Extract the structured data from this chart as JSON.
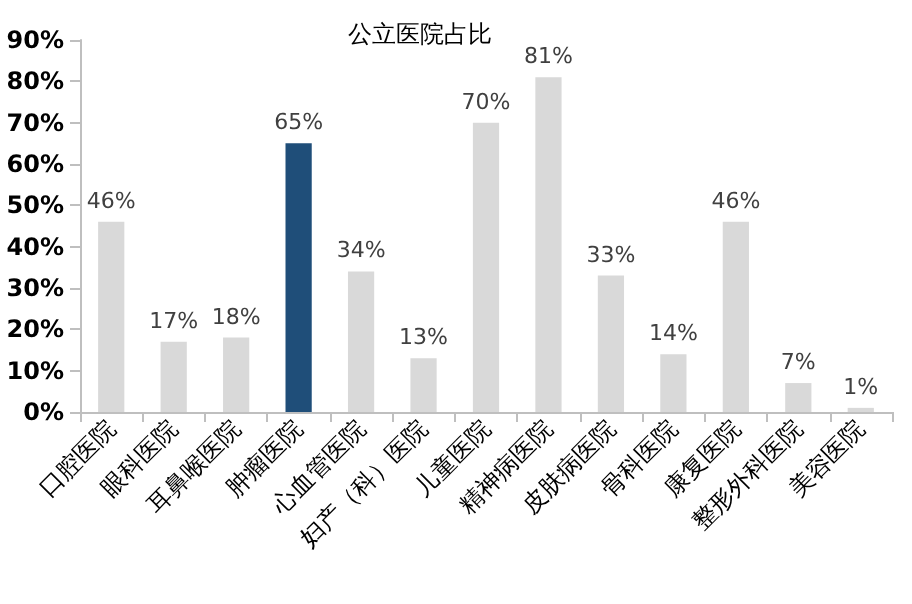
{
  "chart_data": {
    "type": "bar",
    "title": "公立医院占比",
    "categories": [
      "口腔医院",
      "眼科医院",
      "耳鼻喉医院",
      "肿瘤医院",
      "心血管医院",
      "妇产（科）医院",
      "儿童医院",
      "精神病医院",
      "皮肤病医院",
      "骨科医院",
      "康复医院",
      "整形外科医院",
      "美容医院"
    ],
    "values": [
      46,
      17,
      18,
      65,
      34,
      13,
      70,
      81,
      33,
      14,
      46,
      7,
      1
    ],
    "colors": [
      "#d9d9d9",
      "#d9d9d9",
      "#d9d9d9",
      "#1f4e79",
      "#d9d9d9",
      "#d9d9d9",
      "#d9d9d9",
      "#d9d9d9",
      "#d9d9d9",
      "#d9d9d9",
      "#d9d9d9",
      "#d9d9d9",
      "#d9d9d9"
    ],
    "value_labels": [
      "46%",
      "17%",
      "18%",
      "65%",
      "34%",
      "13%",
      "70%",
      "81%",
      "33%",
      "14%",
      "46%",
      "7%",
      "1%"
    ],
    "ylim": [
      0,
      90
    ],
    "yticks": [
      {
        "value": 0,
        "label": "0%"
      },
      {
        "value": 10,
        "label": "10%"
      },
      {
        "value": 20,
        "label": "20%"
      },
      {
        "value": 30,
        "label": "30%"
      },
      {
        "value": 40,
        "label": "40%"
      },
      {
        "value": 50,
        "label": "50%"
      },
      {
        "value": 60,
        "label": "60%"
      },
      {
        "value": 70,
        "label": "70%"
      },
      {
        "value": 80,
        "label": "80%"
      },
      {
        "value": 90,
        "label": "90%"
      }
    ],
    "grid": false
  }
}
